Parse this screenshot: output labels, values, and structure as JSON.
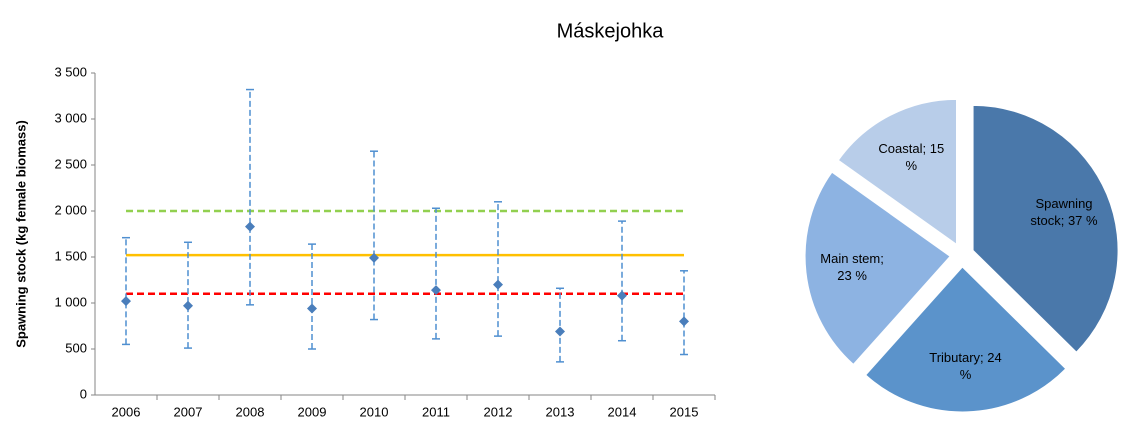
{
  "title": "Máskejohka",
  "chart_data": [
    {
      "type": "errorbar",
      "ylabel": "Spawning stock (kg female biomass)",
      "categories": [
        "2006",
        "2007",
        "2008",
        "2009",
        "2010",
        "2011",
        "2012",
        "2013",
        "2014",
        "2015"
      ],
      "series": [
        {
          "color": "#4f8fd0",
          "values": [
            1020,
            970,
            1830,
            940,
            1490,
            1140,
            1200,
            690,
            1080,
            800
          ],
          "lower": [
            550,
            510,
            980,
            500,
            820,
            610,
            640,
            360,
            590,
            440
          ],
          "upper": [
            1710,
            1660,
            3320,
            1640,
            2650,
            2030,
            2100,
            1160,
            1890,
            1350
          ]
        }
      ],
      "reference_lines": [
        {
          "value": 2000,
          "color": "#92d050",
          "style": "dashed"
        },
        {
          "value": 1520,
          "color": "#ffc000",
          "style": "solid"
        },
        {
          "value": 1100,
          "color": "#ff0000",
          "style": "dashed"
        }
      ],
      "ylim": [
        0,
        3500
      ],
      "yticks": [
        0,
        500,
        {
          "value": 1000,
          "label": "1 000"
        },
        {
          "value": 1500,
          "label": "1 500"
        },
        {
          "value": 2000,
          "label": "2 000"
        },
        {
          "value": 2500,
          "label": "2 500"
        },
        {
          "value": 3000,
          "label": "3 000"
        },
        {
          "value": 3500,
          "label": "3 500"
        }
      ]
    },
    {
      "type": "pie",
      "values": [
        37,
        24,
        23,
        15
      ],
      "value_labels": [
        "Spawning stock; 37 %",
        "Tributary; 24 %",
        "Main stem; 23 %",
        "Coastal; 15 %"
      ],
      "colors": [
        "#4a78aa",
        "#5b93cb",
        "#8db3e2",
        "#b8cde9"
      ]
    }
  ]
}
